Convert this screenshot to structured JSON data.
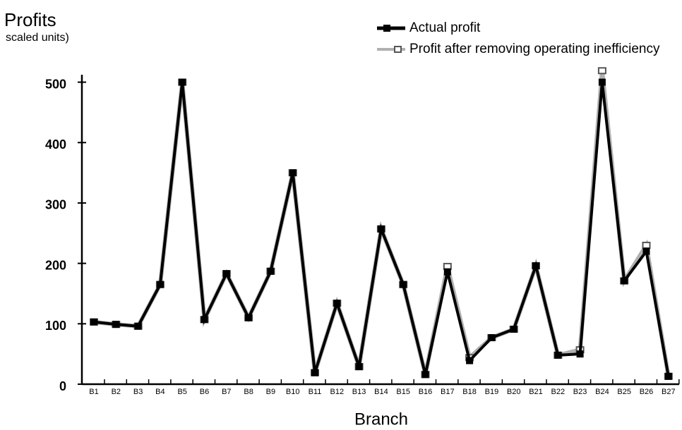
{
  "chart_data": {
    "type": "line",
    "title": "Profits",
    "subtitle": "scaled units)",
    "x_label": "Branch",
    "categories": [
      "B1",
      "B2",
      "B3",
      "B4",
      "B5",
      "B6",
      "B7",
      "B8",
      "B9",
      "B10",
      "B11",
      "B12",
      "B13",
      "B14",
      "B15",
      "B16",
      "B17",
      "B18",
      "B19",
      "B20",
      "B21",
      "B22",
      "B23",
      "B24",
      "B25",
      "B26",
      "B27"
    ],
    "series": [
      {
        "name": "Profit after removing operating inefficiency",
        "color": "#b0b0b0",
        "values": [
          103,
          99,
          96,
          165,
          500,
          107,
          183,
          110,
          187,
          350,
          19,
          134,
          29,
          257,
          165,
          16,
          195,
          44,
          77,
          91,
          196,
          48,
          57,
          519,
          171,
          230,
          13
        ]
      },
      {
        "name": "Actual profit",
        "color": "#000000",
        "values": [
          103,
          99,
          96,
          165,
          500,
          107,
          183,
          110,
          187,
          350,
          19,
          134,
          29,
          257,
          165,
          16,
          186,
          39,
          77,
          91,
          196,
          48,
          50,
          500,
          171,
          220,
          13
        ]
      }
    ],
    "ylim": [
      0,
      510
    ],
    "yticks": [
      0,
      100,
      200,
      300,
      400,
      500
    ],
    "grid": false,
    "legend": "top-right"
  }
}
